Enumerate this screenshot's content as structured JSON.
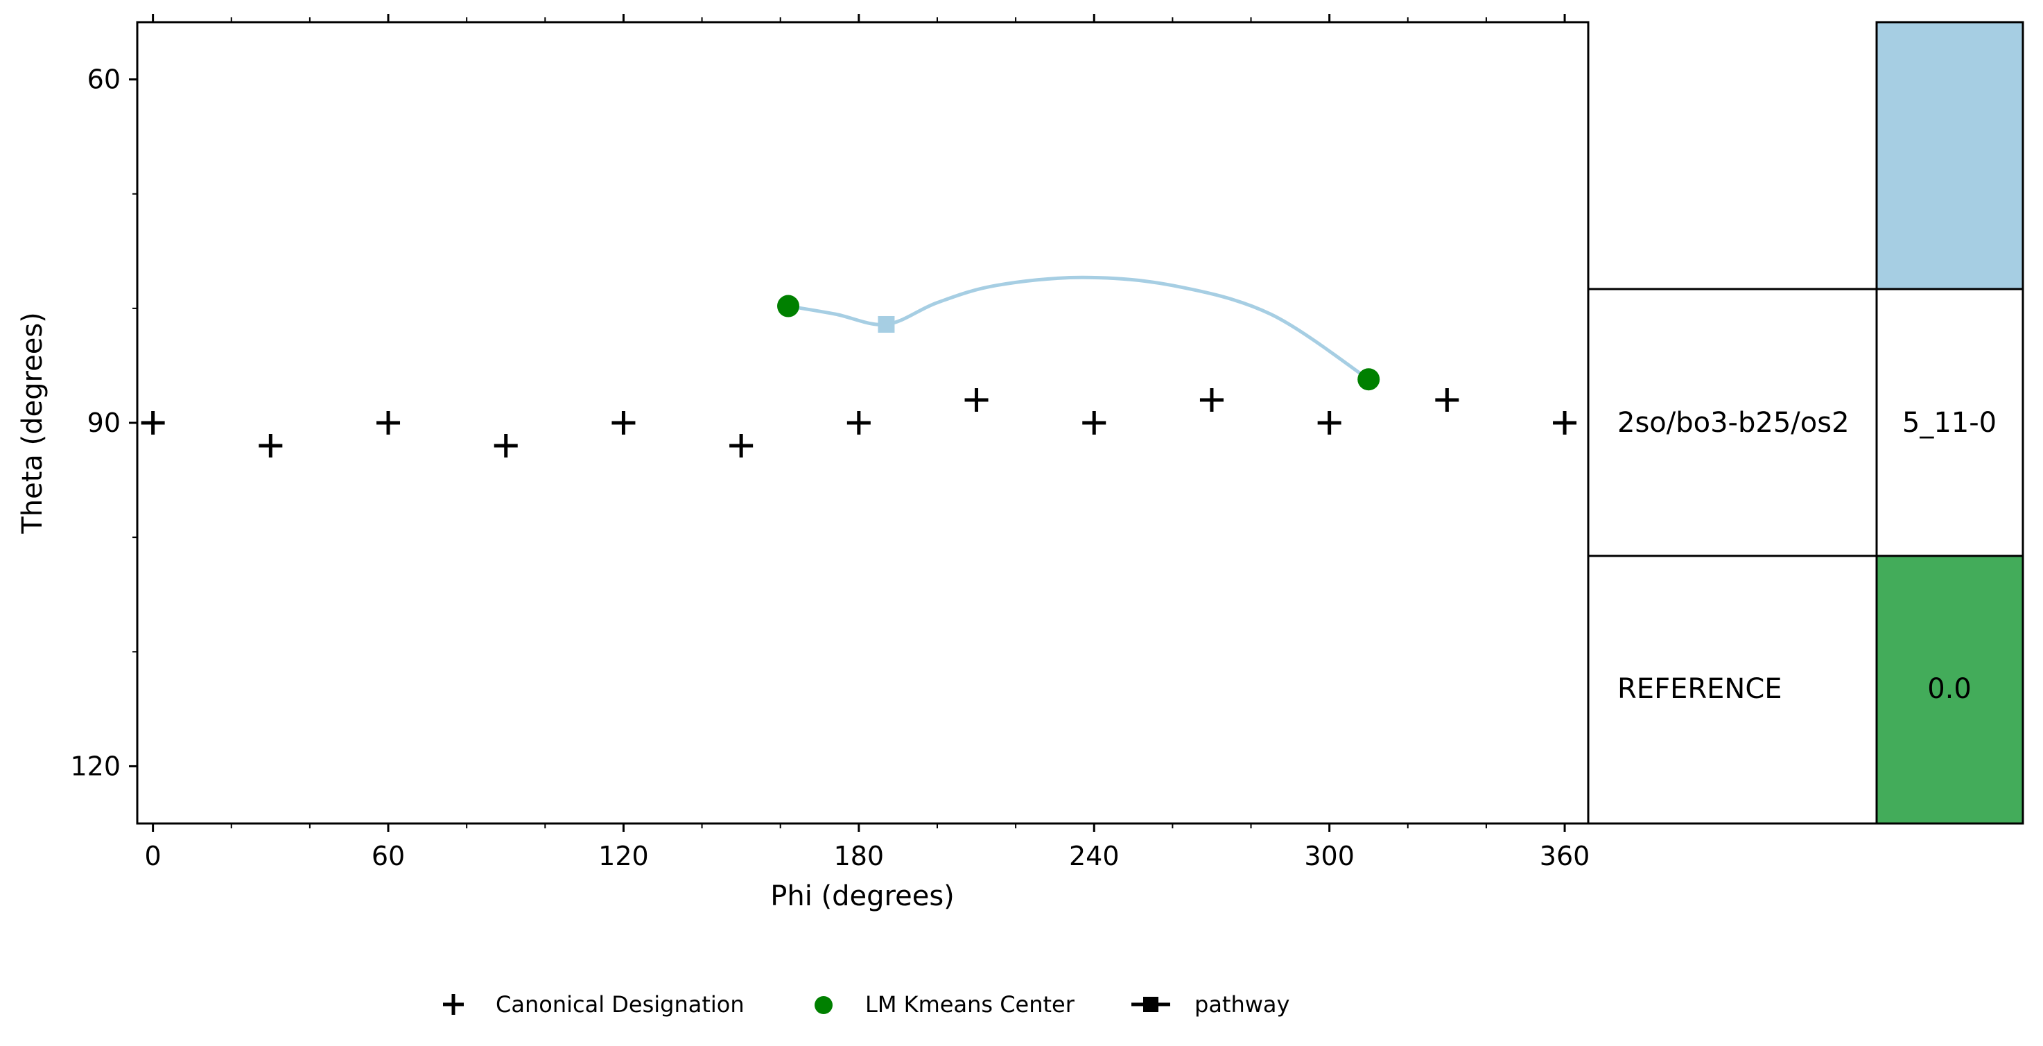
{
  "chart_data": {
    "type": "scatter",
    "xlabel": "Phi (degrees)",
    "ylabel": "Theta (degrees)",
    "xlim": [
      -4,
      366
    ],
    "ylim": [
      125,
      55
    ],
    "xticks": [
      0,
      60,
      120,
      180,
      240,
      300,
      360
    ],
    "xtick_labels": [
      "0",
      "60",
      "120",
      "180",
      "240",
      "300",
      "360"
    ],
    "yticks": [
      60,
      90,
      120
    ],
    "ytick_labels": [
      "60",
      "90",
      "120"
    ],
    "grid": false,
    "legend_position": "bottom",
    "series": [
      {
        "name": "Canonical Designation",
        "marker": "plus",
        "color": "#000000",
        "points": [
          {
            "x": 0,
            "y": 90
          },
          {
            "x": 30,
            "y": 92
          },
          {
            "x": 60,
            "y": 90
          },
          {
            "x": 90,
            "y": 92
          },
          {
            "x": 120,
            "y": 90
          },
          {
            "x": 150,
            "y": 92
          },
          {
            "x": 180,
            "y": 90
          },
          {
            "x": 210,
            "y": 88
          },
          {
            "x": 240,
            "y": 90
          },
          {
            "x": 270,
            "y": 88
          },
          {
            "x": 300,
            "y": 90
          },
          {
            "x": 330,
            "y": 88
          },
          {
            "x": 360,
            "y": 90
          }
        ]
      },
      {
        "name": "LM Kmeans Center",
        "marker": "circle",
        "color": "#008000",
        "points": [
          {
            "x": 162,
            "y": 79.8
          },
          {
            "x": 310,
            "y": 86.2
          }
        ]
      },
      {
        "name": "pathway",
        "marker": "square",
        "color": "#a6cee3",
        "curve": [
          {
            "x": 162,
            "y": 79.8
          },
          {
            "x": 174,
            "y": 80.5
          },
          {
            "x": 187,
            "y": 81.4
          },
          {
            "x": 200,
            "y": 79.5
          },
          {
            "x": 215,
            "y": 78.0
          },
          {
            "x": 237,
            "y": 77.3
          },
          {
            "x": 260,
            "y": 78.0
          },
          {
            "x": 285,
            "y": 80.5
          },
          {
            "x": 310,
            "y": 86.2
          }
        ],
        "marker_points": [
          {
            "x": 187,
            "y": 81.4
          }
        ]
      }
    ]
  },
  "table": {
    "rows": [
      {
        "left": "",
        "right": "",
        "right_color": "#a6cee3"
      },
      {
        "left": "2so/bo3-b25/os2",
        "right": "5_11-0",
        "right_color": "#ffffff"
      },
      {
        "left": "REFERENCE",
        "right": "0.0",
        "right_color": "#43ac5a"
      }
    ]
  },
  "legend": {
    "items": [
      {
        "label": "Canonical Designation",
        "marker": "plus",
        "color": "#000000"
      },
      {
        "label": "LM Kmeans Center",
        "marker": "circle",
        "color": "#008000"
      },
      {
        "label": "pathway",
        "marker": "line-square",
        "color": "#000000"
      }
    ]
  }
}
